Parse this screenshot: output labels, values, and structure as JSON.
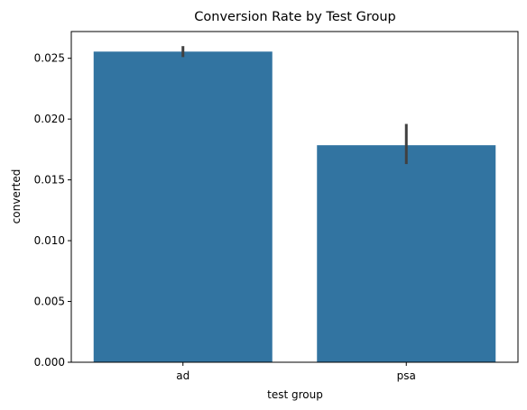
{
  "chart_data": {
    "type": "bar",
    "title": "Conversion Rate by Test Group",
    "xlabel": "test group",
    "ylabel": "converted",
    "categories": [
      "ad",
      "psa"
    ],
    "values": [
      0.02555,
      0.01785
    ],
    "error_bars": [
      {
        "low": 0.0251,
        "high": 0.026
      },
      {
        "low": 0.0163,
        "high": 0.0196
      }
    ],
    "ylim": [
      0,
      0.0272
    ],
    "yticks": [
      "0.000",
      "0.005",
      "0.010",
      "0.015",
      "0.020",
      "0.025"
    ],
    "ytick_values": [
      0,
      0.005,
      0.01,
      0.015,
      0.02,
      0.025
    ],
    "grid": false,
    "legend": "none"
  },
  "colors": {
    "bar": "#3274a1",
    "error_bar": "#404040",
    "axis": "#000000"
  }
}
